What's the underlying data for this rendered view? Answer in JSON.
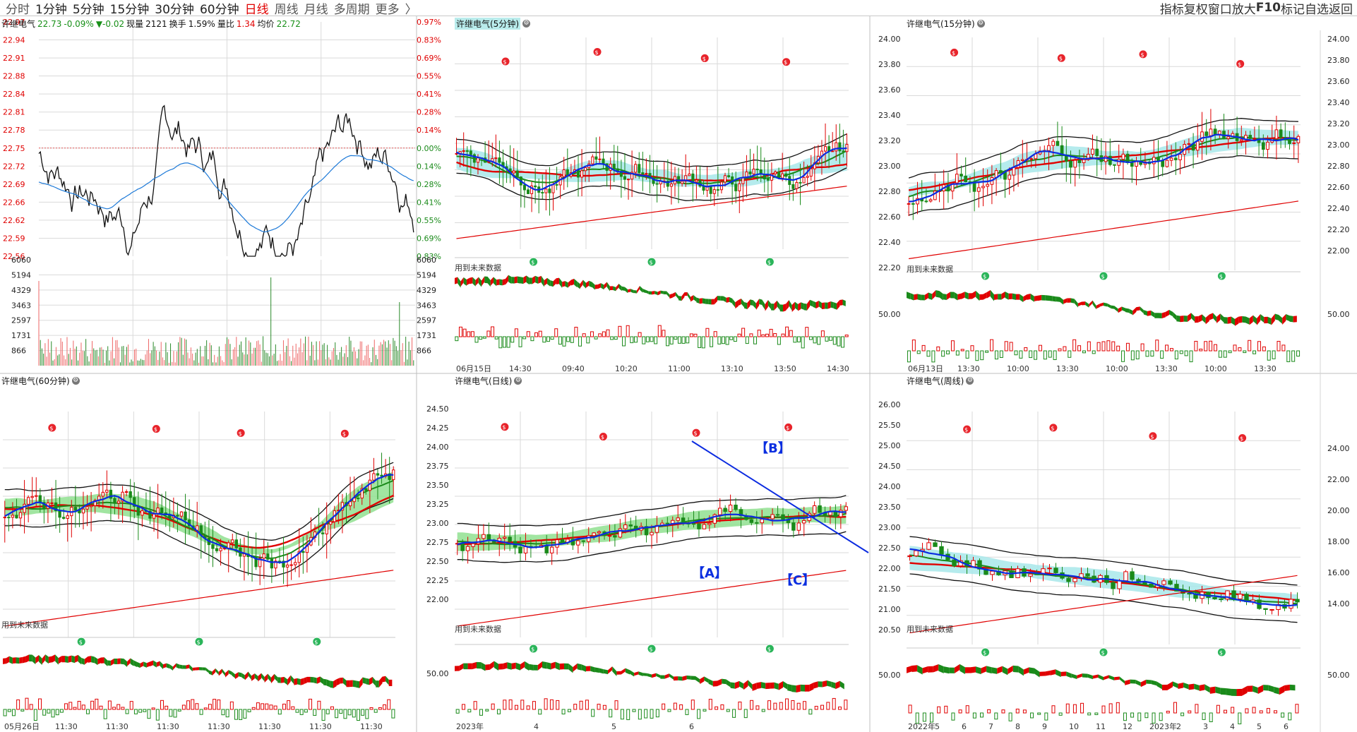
{
  "topbar": {
    "tabs": [
      "分时",
      "1分钟",
      "5分钟",
      "15分钟",
      "30分钟",
      "60分钟",
      "日线",
      "周线",
      "月线",
      "多周期",
      "更多"
    ],
    "more_arrow": "〉",
    "active_tab": "日线",
    "right_items": [
      "指标",
      "复权",
      "窗口放大",
      "F10",
      "标记",
      "自选",
      "返回"
    ]
  },
  "panels": {
    "intraday": {
      "title": "许继电气",
      "price": "22.73",
      "pct": "-0.09%",
      "change": "▼-0.02",
      "volume_label": "现量",
      "volume": "2121",
      "turnover_label": "换手",
      "turnover": "1.59%",
      "ratio_label": "量比",
      "ratio": "1.34",
      "avg_label": "均价",
      "avg": "22.72",
      "price_ticks": [
        "22.97",
        "22.94",
        "22.91",
        "22.88",
        "22.84",
        "22.81",
        "22.78",
        "22.75",
        "22.72",
        "22.69",
        "22.66",
        "22.62",
        "22.59",
        "22.56"
      ],
      "pct_ticks": [
        "0.97%",
        "0.83%",
        "0.69%",
        "0.55%",
        "0.41%",
        "0.28%",
        "0.14%",
        "0.00%",
        "0.14%",
        "0.28%",
        "0.41%",
        "0.55%",
        "0.69%",
        "0.83%"
      ],
      "vol_ticks": [
        "6060",
        "5194",
        "4329",
        "3463",
        "2597",
        "1731",
        "866"
      ]
    },
    "m5": {
      "title": "许继电气(5分钟)",
      "note": "用到未来数据",
      "xlabels": [
        "06月15日",
        "14:30",
        "09:40",
        "10:20",
        "11:00",
        "13:10",
        "13:50",
        "14:30"
      ]
    },
    "m15": {
      "title": "许继电气(15分钟)",
      "note": "用到未来数据",
      "yticks": [
        "24.00",
        "23.80",
        "23.60",
        "23.40",
        "23.20",
        "23.00",
        "22.80",
        "22.60",
        "22.40",
        "22.20"
      ],
      "right_ticks": [
        "24.00",
        "23.80",
        "23.60",
        "23.40",
        "23.20",
        "23.00",
        "22.80",
        "22.60",
        "22.40",
        "22.20",
        "22.00"
      ],
      "right_ticks_low": [
        "24.00",
        "22.00",
        "20.00",
        "18.00",
        "16.00",
        "14.00"
      ],
      "osc_tick": "50.00",
      "xlabels": [
        "06月13日",
        "13:30",
        "10:00",
        "13:30",
        "10:00",
        "13:30",
        "10:00",
        "13:30"
      ]
    },
    "m60": {
      "title": "许继电气(60分钟)",
      "note": "用到未来数据",
      "xlabels": [
        "05月26日",
        "11:30",
        "11:30",
        "11:30",
        "11:30",
        "11:30",
        "11:30",
        "11:30"
      ]
    },
    "daily": {
      "title": "许继电气(日线)",
      "note": "用到未来数据",
      "yticks": [
        "24.50",
        "24.25",
        "24.00",
        "23.75",
        "23.50",
        "23.25",
        "23.00",
        "22.75",
        "22.50",
        "22.25",
        "22.00"
      ],
      "osc_tick": "50.00",
      "wave_labels": [
        "【B】",
        "【A】",
        "【C】"
      ],
      "xlabels": [
        "2023年",
        "4",
        "5",
        "6"
      ]
    },
    "weekly": {
      "title": "许继电气(周线)",
      "note": "用到未来数据",
      "yticks": [
        "26.00",
        "25.50",
        "25.00",
        "24.50",
        "24.00",
        "23.50",
        "23.00",
        "22.50",
        "22.00",
        "21.50",
        "21.00",
        "20.50"
      ],
      "osc_tick": "50.00",
      "xlabels": [
        "2022年",
        "5",
        "6",
        "7",
        "8",
        "9",
        "10",
        "11",
        "12",
        "2023年",
        "2",
        "3",
        "4",
        "5",
        "6"
      ]
    }
  },
  "colors": {
    "up": "#e00000",
    "down": "#1a8a1a",
    "bg": "#ffffff",
    "grid": "#c8c8c8",
    "cyan": "#a8e8ea",
    "band": "#90e090",
    "blue": "#0b2be0"
  }
}
